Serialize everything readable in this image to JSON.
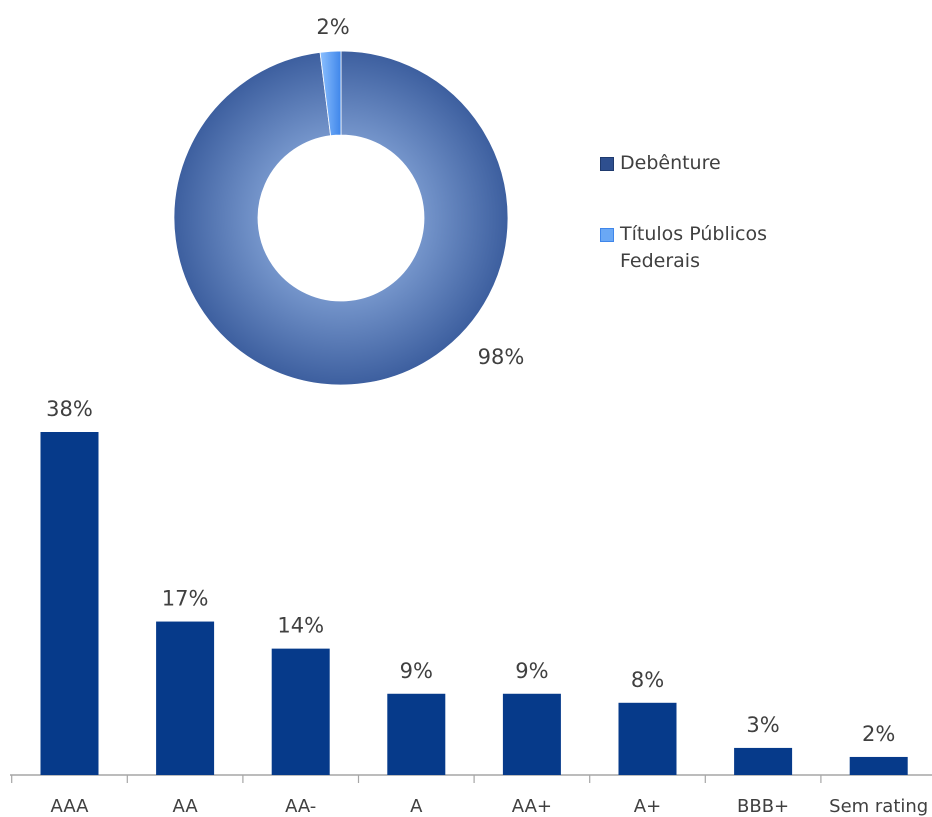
{
  "chart_data": [
    {
      "type": "pie",
      "variant": "donut",
      "slices": [
        {
          "name": "Debênture",
          "value": 98,
          "label": "98%",
          "color": "#3f62a3"
        },
        {
          "name": "Títulos Públicos Federais",
          "value": 2,
          "label": "2%",
          "color": "#5b9bf0"
        }
      ],
      "legend": "right"
    },
    {
      "type": "bar",
      "categories": [
        "AAA",
        "AA",
        "AA-",
        "A",
        "AA+",
        "A+",
        "BBB+",
        "Sem rating"
      ],
      "values": [
        38,
        17,
        14,
        9,
        9,
        8,
        3,
        2
      ],
      "value_labels": [
        "38%",
        "17%",
        "14%",
        "9%",
        "9%",
        "8%",
        "3%",
        "2%"
      ],
      "color": "#063a8a",
      "grid": false
    }
  ]
}
